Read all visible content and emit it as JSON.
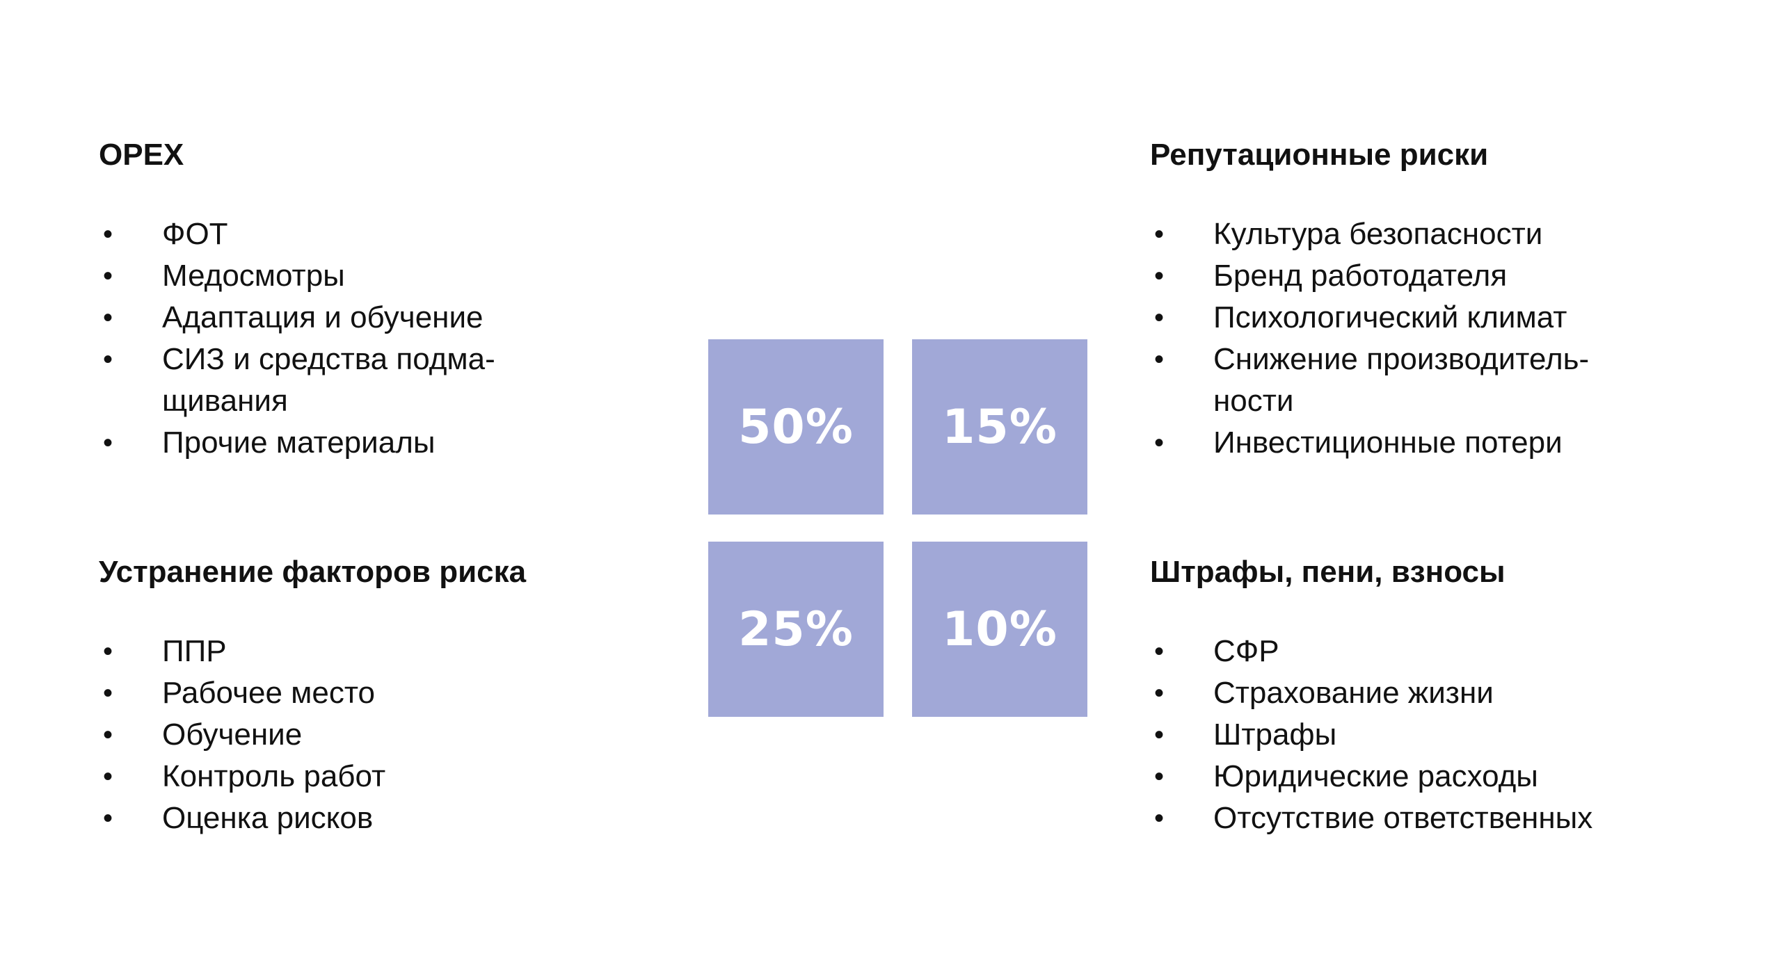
{
  "theme": {
    "tile_color": "#a1a8d7",
    "text_color": "#111111",
    "tile_text_color": "#ffffff",
    "background": "#ffffff"
  },
  "blocks": {
    "top_left": {
      "title": "OPEX",
      "items": [
        "ФОТ",
        "Медосмотры",
        "Адаптация и обучение",
        "СИЗ и средства подма-\nщивания",
        "Прочие материалы"
      ]
    },
    "top_right": {
      "title": "Репутационные риски",
      "items": [
        "Культура безопасности",
        "Бренд работодателя",
        "Психологический климат",
        "Снижение производитель-\nности",
        "Инвестиционные потери"
      ]
    },
    "bottom_left": {
      "title": "Устранение факторов риска",
      "items": [
        "ППР",
        "Рабочее место",
        "Обучение",
        "Контроль работ",
        "Оценка рисков"
      ]
    },
    "bottom_right": {
      "title": "Штрафы, пени, взносы",
      "items": [
        "СФР",
        "Страхование жизни",
        "Штрафы",
        "Юридические расходы",
        "Отсутствие ответственных"
      ]
    }
  },
  "tiles": {
    "top_left": "50%",
    "top_right": "15%",
    "bottom_left": "25%",
    "bottom_right": "10%"
  }
}
